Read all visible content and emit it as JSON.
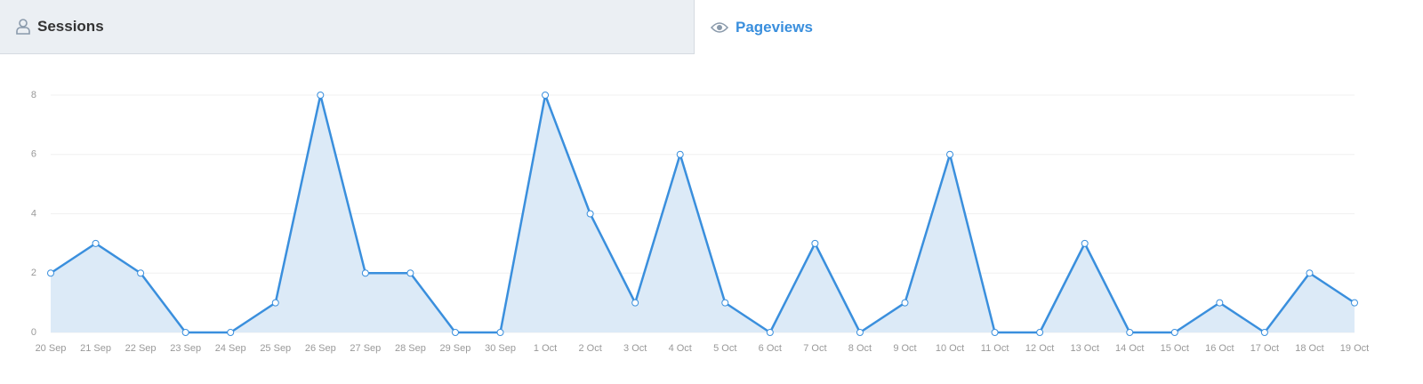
{
  "tabs": [
    {
      "label": "Sessions"
    },
    {
      "label": "Pageviews"
    }
  ],
  "active_tab": 1,
  "chart_data": {
    "type": "area",
    "categories": [
      "20 Sep",
      "21 Sep",
      "22 Sep",
      "23 Sep",
      "24 Sep",
      "25 Sep",
      "26 Sep",
      "27 Sep",
      "28 Sep",
      "29 Sep",
      "30 Sep",
      "1 Oct",
      "2 Oct",
      "3 Oct",
      "4 Oct",
      "5 Oct",
      "6 Oct",
      "7 Oct",
      "8 Oct",
      "9 Oct",
      "10 Oct",
      "11 Oct",
      "12 Oct",
      "13 Oct",
      "14 Oct",
      "15 Oct",
      "16 Oct",
      "17 Oct",
      "18 Oct",
      "19 Oct"
    ],
    "values": [
      2,
      3,
      2,
      0,
      0,
      1,
      8,
      2,
      2,
      0,
      0,
      8,
      4,
      1,
      6,
      1,
      0,
      3,
      0,
      1,
      6,
      0,
      0,
      3,
      0,
      0,
      1,
      0,
      2,
      1
    ],
    "color": "#3a8fdd",
    "fill": "#dceaf7",
    "ylim": [
      0,
      8
    ],
    "yticks": [
      0,
      2,
      4,
      6,
      8
    ],
    "grid": true
  }
}
